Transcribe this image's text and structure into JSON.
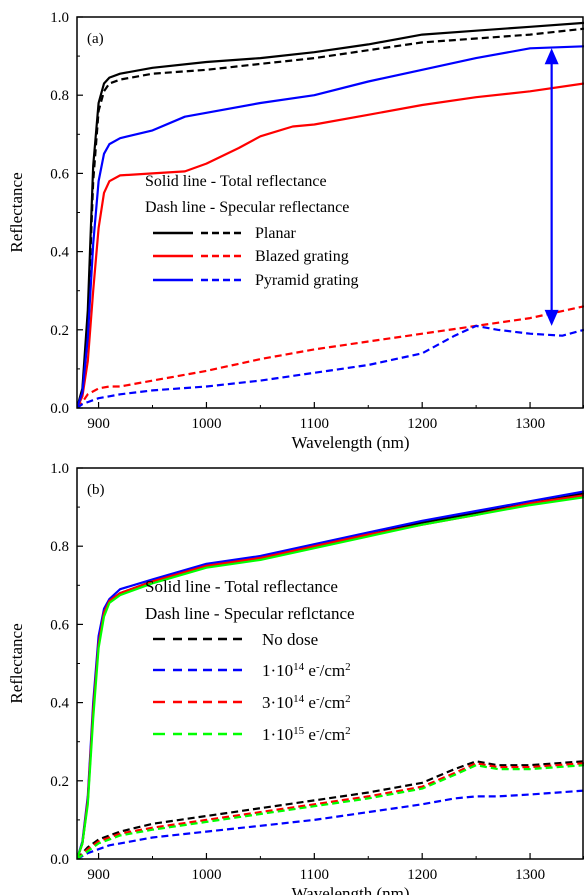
{
  "chart_data": [
    {
      "type": "line",
      "panel_label": "(a)",
      "xlabel": "Wavelength (nm)",
      "ylabel": "Reflectance",
      "xlim": [
        880,
        1350
      ],
      "ylim": [
        0,
        1.0
      ],
      "xticks": [
        900,
        1000,
        1100,
        1200,
        1300
      ],
      "yticks": [
        0.0,
        0.2,
        0.4,
        0.6,
        0.8,
        1.0
      ],
      "ytick_labels": [
        "0.0",
        "0.2",
        "0.4",
        "0.6",
        "0.8",
        "1.0"
      ],
      "legend": {
        "header": [
          "Solid line - Total reflectance",
          "Dash line - Specular reflectance"
        ],
        "entries": [
          "Planar",
          "Blazed grating",
          "Pyramid grating"
        ]
      },
      "annotation": "double-headed blue arrow at x≈1320 spanning y≈0.21 to y≈0.92",
      "arrow": {
        "x": 1320,
        "y1": 0.21,
        "y2": 0.92,
        "color": "#0000ff"
      },
      "series": [
        {
          "name": "Planar",
          "style": "solid",
          "color": "#000000",
          "x": [
            880,
            885,
            890,
            895,
            900,
            905,
            910,
            920,
            950,
            1000,
            1050,
            1100,
            1150,
            1200,
            1250,
            1300,
            1350
          ],
          "y": [
            0.0,
            0.05,
            0.25,
            0.62,
            0.78,
            0.83,
            0.845,
            0.855,
            0.87,
            0.885,
            0.895,
            0.91,
            0.93,
            0.955,
            0.965,
            0.975,
            0.985
          ]
        },
        {
          "name": "Planar",
          "style": "dashed",
          "color": "#000000",
          "x": [
            880,
            885,
            890,
            895,
            900,
            905,
            910,
            920,
            950,
            1000,
            1050,
            1100,
            1150,
            1200,
            1250,
            1300,
            1350
          ],
          "y": [
            0.0,
            0.04,
            0.22,
            0.58,
            0.76,
            0.81,
            0.83,
            0.84,
            0.855,
            0.865,
            0.88,
            0.895,
            0.915,
            0.935,
            0.945,
            0.955,
            0.97
          ]
        },
        {
          "name": "Blazed grating",
          "style": "solid",
          "color": "#ff0000",
          "x": [
            880,
            885,
            890,
            895,
            900,
            905,
            910,
            920,
            950,
            980,
            1000,
            1030,
            1050,
            1080,
            1100,
            1150,
            1200,
            1250,
            1300,
            1350
          ],
          "y": [
            0.0,
            0.03,
            0.12,
            0.3,
            0.46,
            0.55,
            0.58,
            0.595,
            0.6,
            0.605,
            0.625,
            0.665,
            0.695,
            0.72,
            0.725,
            0.75,
            0.775,
            0.795,
            0.81,
            0.83
          ]
        },
        {
          "name": "Blazed grating",
          "style": "dashed",
          "color": "#ff0000",
          "x": [
            880,
            885,
            890,
            900,
            910,
            920,
            950,
            1000,
            1050,
            1100,
            1150,
            1200,
            1250,
            1300,
            1350
          ],
          "y": [
            0.0,
            0.015,
            0.035,
            0.05,
            0.055,
            0.055,
            0.07,
            0.095,
            0.125,
            0.15,
            0.17,
            0.19,
            0.21,
            0.23,
            0.26
          ]
        },
        {
          "name": "Pyramid grating",
          "style": "solid",
          "color": "#0000ff",
          "x": [
            880,
            885,
            890,
            895,
            900,
            905,
            910,
            920,
            950,
            980,
            1000,
            1050,
            1100,
            1150,
            1200,
            1250,
            1300,
            1350
          ],
          "y": [
            0.0,
            0.04,
            0.18,
            0.42,
            0.58,
            0.65,
            0.675,
            0.69,
            0.71,
            0.745,
            0.755,
            0.78,
            0.8,
            0.835,
            0.865,
            0.895,
            0.92,
            0.925
          ]
        },
        {
          "name": "Pyramid grating",
          "style": "dashed",
          "color": "#0000ff",
          "x": [
            880,
            885,
            890,
            900,
            910,
            920,
            950,
            1000,
            1050,
            1100,
            1150,
            1200,
            1230,
            1250,
            1270,
            1300,
            1330,
            1350
          ],
          "y": [
            0.0,
            0.01,
            0.015,
            0.025,
            0.03,
            0.035,
            0.045,
            0.055,
            0.07,
            0.09,
            0.11,
            0.14,
            0.185,
            0.21,
            0.2,
            0.19,
            0.185,
            0.2
          ]
        }
      ]
    },
    {
      "type": "line",
      "panel_label": "(b)",
      "xlabel": "Wavelength (nm)",
      "ylabel": "Reflectance",
      "xlim": [
        880,
        1350
      ],
      "ylim": [
        0,
        1.0
      ],
      "xticks": [
        900,
        1000,
        1100,
        1200,
        1300
      ],
      "yticks": [
        0.0,
        0.2,
        0.4,
        0.6,
        0.8,
        1.0
      ],
      "ytick_labels": [
        "0.0",
        "0.2",
        "0.4",
        "0.6",
        "0.8",
        "1.0"
      ],
      "legend": {
        "header": [
          "Solid line - Total reflectance",
          "Dash line - Specular reflctance"
        ],
        "entries": [
          {
            "pre": "No dose",
            "sup": "",
            "mid": "",
            "sup2": "",
            "post": ""
          },
          {
            "pre": "1·10",
            "sup": "14",
            "mid": " e",
            "sup2": "-",
            "post": "/cm",
            "sup3": "2"
          },
          {
            "pre": "3·10",
            "sup": "14",
            "mid": " e",
            "sup2": "-",
            "post": "/cm",
            "sup3": "2"
          },
          {
            "pre": "1·10",
            "sup": "15",
            "mid": " e",
            "sup2": "-",
            "post": "/cm",
            "sup3": "2"
          }
        ]
      },
      "series": [
        {
          "name": "No dose",
          "style": "solid",
          "color": "#000000",
          "x": [
            880,
            885,
            890,
            895,
            900,
            905,
            910,
            920,
            950,
            1000,
            1050,
            1100,
            1150,
            1200,
            1250,
            1300,
            1350
          ],
          "y": [
            0.0,
            0.04,
            0.15,
            0.38,
            0.55,
            0.63,
            0.66,
            0.68,
            0.71,
            0.75,
            0.77,
            0.8,
            0.83,
            0.86,
            0.885,
            0.91,
            0.935
          ]
        },
        {
          "name": "No dose",
          "style": "dashed",
          "color": "#000000",
          "x": [
            880,
            890,
            900,
            910,
            920,
            950,
            1000,
            1050,
            1100,
            1150,
            1200,
            1230,
            1250,
            1270,
            1300,
            1350
          ],
          "y": [
            0.0,
            0.03,
            0.05,
            0.06,
            0.07,
            0.09,
            0.11,
            0.13,
            0.15,
            0.17,
            0.195,
            0.23,
            0.25,
            0.24,
            0.24,
            0.25
          ]
        },
        {
          "name": "1·10^14 e-/cm2",
          "style": "solid",
          "color": "#0000ff",
          "x": [
            880,
            885,
            890,
            895,
            900,
            905,
            910,
            920,
            950,
            1000,
            1050,
            1100,
            1150,
            1200,
            1250,
            1300,
            1350
          ],
          "y": [
            0.0,
            0.045,
            0.16,
            0.4,
            0.57,
            0.64,
            0.665,
            0.69,
            0.715,
            0.755,
            0.775,
            0.805,
            0.835,
            0.865,
            0.89,
            0.915,
            0.94
          ]
        },
        {
          "name": "1·10^14 e-/cm2",
          "style": "dashed",
          "color": "#0000ff",
          "x": [
            880,
            890,
            900,
            910,
            920,
            950,
            1000,
            1050,
            1100,
            1150,
            1200,
            1230,
            1250,
            1270,
            1300,
            1350
          ],
          "y": [
            0.0,
            0.015,
            0.025,
            0.035,
            0.04,
            0.055,
            0.07,
            0.085,
            0.1,
            0.12,
            0.14,
            0.155,
            0.16,
            0.16,
            0.165,
            0.175
          ]
        },
        {
          "name": "3·10^14 e-/cm2",
          "style": "solid",
          "color": "#ff0000",
          "x": [
            880,
            885,
            890,
            895,
            900,
            905,
            910,
            920,
            950,
            1000,
            1050,
            1100,
            1150,
            1200,
            1250,
            1300,
            1350
          ],
          "y": [
            0.0,
            0.04,
            0.15,
            0.38,
            0.55,
            0.63,
            0.66,
            0.68,
            0.71,
            0.75,
            0.77,
            0.8,
            0.83,
            0.855,
            0.88,
            0.91,
            0.93
          ]
        },
        {
          "name": "3·10^14 e-/cm2",
          "style": "dashed",
          "color": "#ff0000",
          "x": [
            880,
            890,
            900,
            910,
            920,
            950,
            1000,
            1050,
            1100,
            1150,
            1200,
            1230,
            1250,
            1270,
            1300,
            1350
          ],
          "y": [
            0.0,
            0.025,
            0.045,
            0.055,
            0.065,
            0.08,
            0.1,
            0.12,
            0.14,
            0.16,
            0.185,
            0.22,
            0.245,
            0.235,
            0.235,
            0.245
          ]
        },
        {
          "name": "1·10^15 e-/cm2",
          "style": "solid",
          "color": "#00ff00",
          "x": [
            880,
            885,
            890,
            895,
            900,
            905,
            910,
            920,
            950,
            1000,
            1050,
            1100,
            1150,
            1200,
            1250,
            1300,
            1350
          ],
          "y": [
            0.0,
            0.04,
            0.14,
            0.36,
            0.54,
            0.62,
            0.655,
            0.675,
            0.705,
            0.745,
            0.765,
            0.795,
            0.825,
            0.855,
            0.88,
            0.905,
            0.925
          ]
        },
        {
          "name": "1·10^15 e-/cm2",
          "style": "dashed",
          "color": "#00ff00",
          "x": [
            880,
            890,
            900,
            910,
            920,
            950,
            1000,
            1050,
            1100,
            1150,
            1200,
            1230,
            1250,
            1270,
            1300,
            1350
          ],
          "y": [
            0.0,
            0.02,
            0.04,
            0.05,
            0.06,
            0.075,
            0.095,
            0.115,
            0.135,
            0.155,
            0.18,
            0.215,
            0.24,
            0.23,
            0.23,
            0.24
          ]
        }
      ]
    }
  ]
}
